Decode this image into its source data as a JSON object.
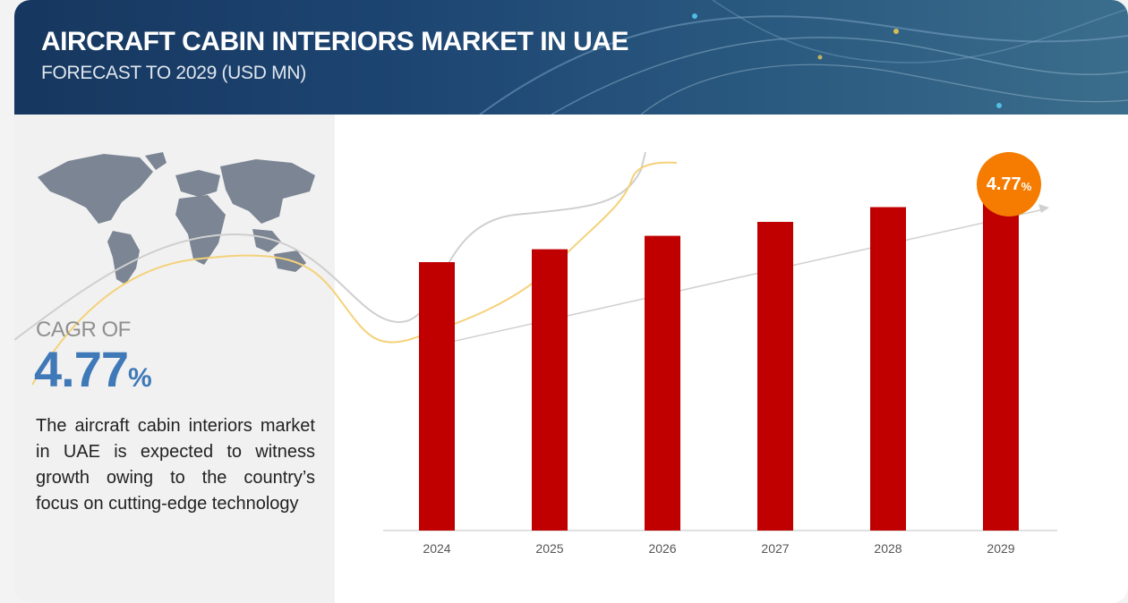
{
  "header": {
    "title": "AIRCRAFT CABIN INTERIORS MARKET IN UAE",
    "subtitle": "FORECAST TO 2029 (USD MN)"
  },
  "left_panel": {
    "cagr_label": "CAGR OF",
    "cagr_value": "4.77",
    "cagr_unit": "%",
    "description": "The aircraft cabin interiors market in UAE is expected to witness growth owing to the country’s focus on cutting-edge technology"
  },
  "badge": {
    "value": "4.77",
    "unit": "%"
  },
  "colors": {
    "bar": "#c00000",
    "badge": "#f57c00",
    "cagr": "#3f79b8",
    "banner": "#1d4572"
  },
  "chart_data": {
    "type": "bar",
    "categories": [
      "2024",
      "2025",
      "2026",
      "2027",
      "2028",
      "2029"
    ],
    "values": [
      100,
      104.8,
      109.8,
      115.0,
      120.5,
      126.2
    ],
    "ylim": [
      0,
      140
    ],
    "title": "",
    "xlabel": "",
    "ylabel": "",
    "grid": false
  }
}
